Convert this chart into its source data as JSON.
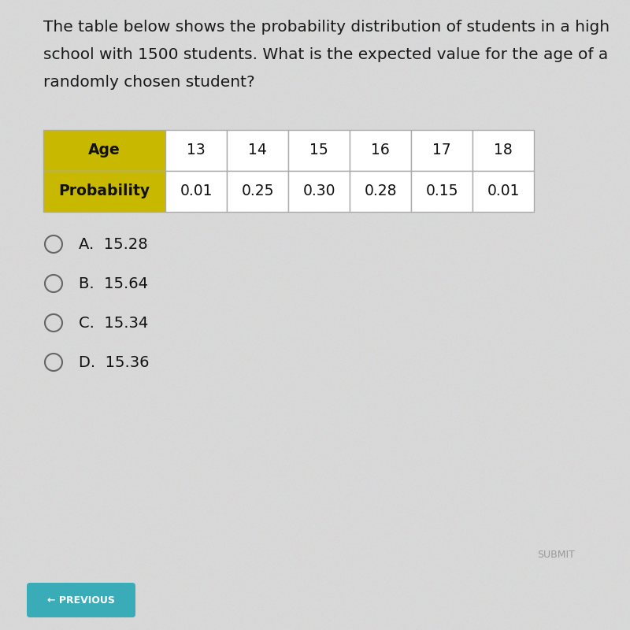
{
  "title_line1": "The table below shows the probability distribution of students in a high",
  "title_line2": "school with 1500 students. What is the expected value for the age of a",
  "title_line3": "randomly chosen student?",
  "table_header_labels": [
    "Age",
    "13",
    "14",
    "15",
    "16",
    "17",
    "18"
  ],
  "table_row2_labels": [
    "Probability",
    "0.01",
    "0.25",
    "0.30",
    "0.28",
    "0.15",
    "0.01"
  ],
  "header_col_bg": "#c8b800",
  "header_col_text": "#000000",
  "table_bg": "#ffffff",
  "table_border": "#aaaaaa",
  "choices": [
    "A.  15.28",
    "B.  15.64",
    "C.  15.34",
    "D.  15.36"
  ],
  "submit_label": "SUBMIT",
  "previous_label": "← PREVIOUS",
  "previous_bg": "#3aacb8",
  "background_color": "#d8d8d8",
  "title_fontsize": 14.5,
  "choice_fontsize": 14,
  "table_fontsize": 13.5
}
